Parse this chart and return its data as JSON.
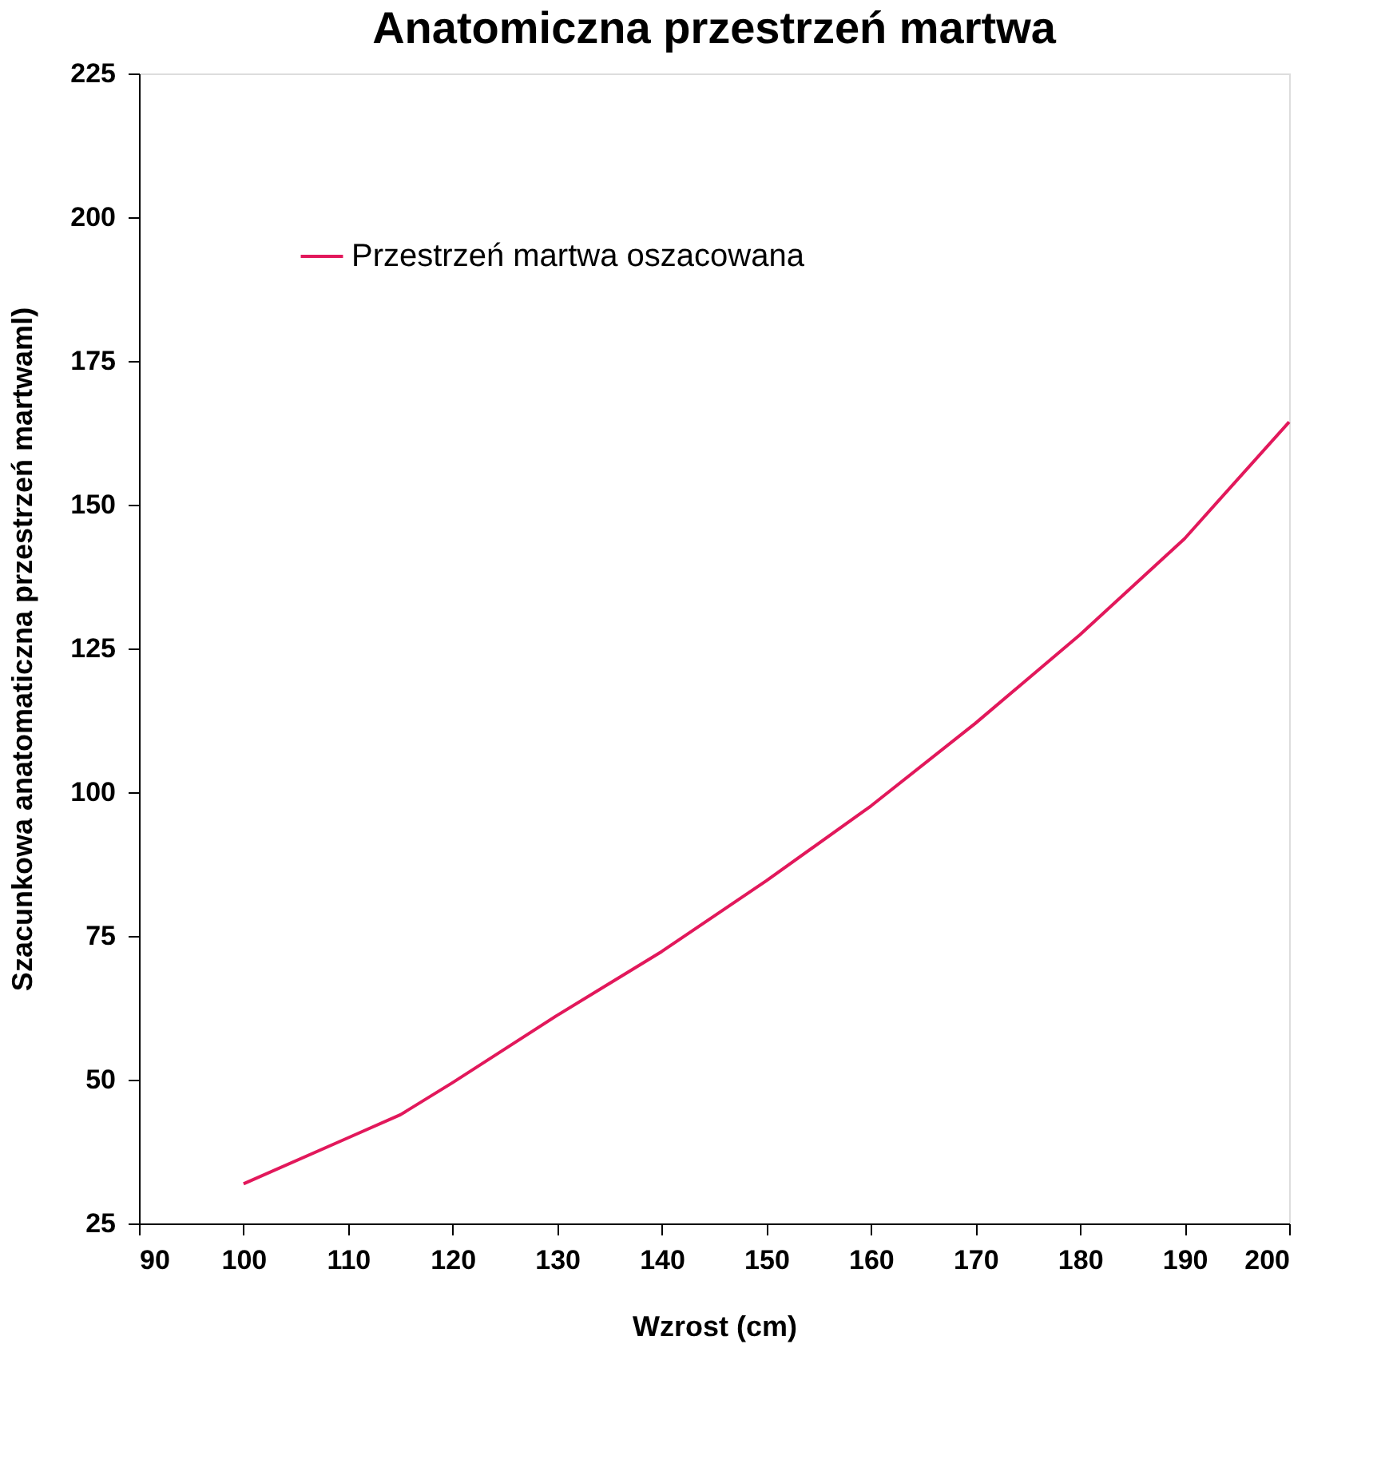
{
  "chart_data": {
    "type": "line",
    "title": "Anatomiczna przestrzeń martwa",
    "xlabel": "Wzrost (cm)",
    "ylabel": "Szacunkowa anatomaticzna przestrzeń martwaml)",
    "x": [
      100,
      110,
      115,
      120,
      130,
      140,
      150,
      160,
      170,
      180,
      190,
      200
    ],
    "series": [
      {
        "name": "Przestrzeń martwa oszacowana",
        "color": "#e2185b",
        "values": [
          31.9,
          39.9,
          43.9,
          49.5,
          61.2,
          72.3,
          84.6,
          97.6,
          112,
          127.4,
          144.1,
          164.4
        ]
      }
    ],
    "xlim": [
      90,
      200
    ],
    "ylim": [
      25,
      225
    ],
    "xticks": [
      90,
      100,
      110,
      120,
      130,
      140,
      150,
      160,
      170,
      180,
      190,
      200
    ],
    "yticks": [
      25,
      50,
      75,
      100,
      125,
      150,
      175,
      200,
      225
    ],
    "grid": false,
    "legend": "top left",
    "marker": "none",
    "line_style": "solid"
  }
}
